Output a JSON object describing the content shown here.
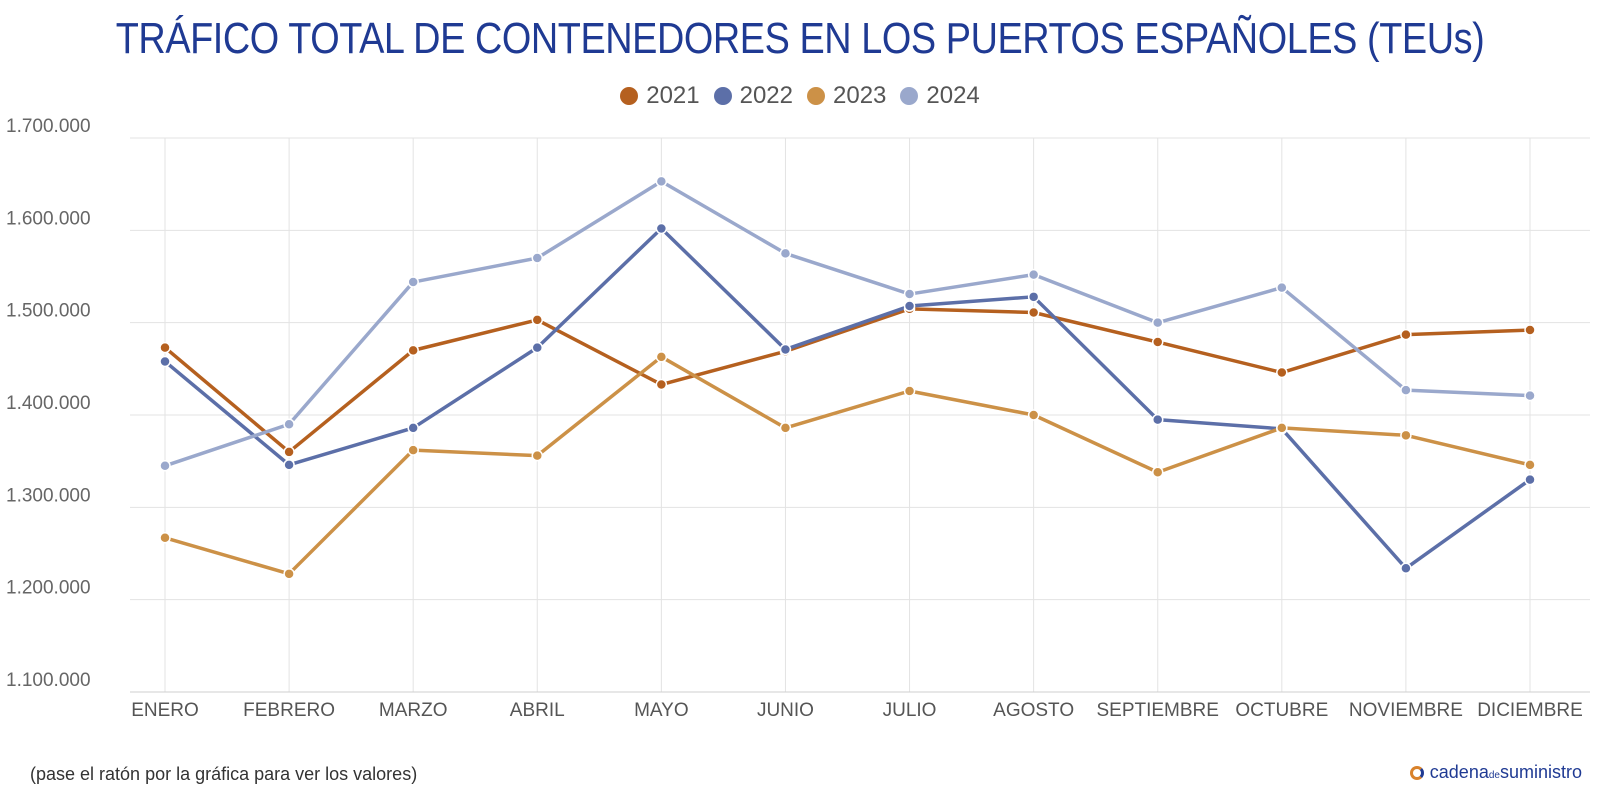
{
  "title": "TRÁFICO TOTAL DE CONTENEDORES EN LOS PUERTOS ESPAÑOLES (TEUs)",
  "footnote": "(pase el ratón por la gráfica para ver los valores)",
  "brand": {
    "part1": "cadena",
    "part2": "de",
    "part3": "suministro"
  },
  "chart_data": {
    "type": "line",
    "title": "TRÁFICO TOTAL DE CONTENEDORES EN LOS PUERTOS ESPAÑOLES (TEUs)",
    "categories": [
      "ENERO",
      "FEBRERO",
      "MARZO",
      "ABRIL",
      "MAYO",
      "JUNIO",
      "JULIO",
      "AGOSTO",
      "SEPTIEMBRE",
      "OCTUBRE",
      "NOVIEMBRE",
      "DICIEMBRE"
    ],
    "ylim": [
      1100000,
      1700000
    ],
    "yticks": [
      1100000,
      1200000,
      1300000,
      1400000,
      1500000,
      1600000,
      1700000
    ],
    "ytick_labels": [
      "1.100.000",
      "1.200.000",
      "1.300.000",
      "1.400.000",
      "1.500.000",
      "1.600.000",
      "1.700.000"
    ],
    "grid": true,
    "legend_position": "top-center",
    "series": [
      {
        "name": "2021",
        "color": "#b5601f",
        "values": [
          1473000,
          1360000,
          1470000,
          1503000,
          1433000,
          1469000,
          1515000,
          1511000,
          1479000,
          1446000,
          1487000,
          1492000
        ]
      },
      {
        "name": "2022",
        "color": "#5c6fa8",
        "values": [
          1458000,
          1346000,
          1386000,
          1473000,
          1602000,
          1471000,
          1518000,
          1528000,
          1395000,
          1385000,
          1234000,
          1330000
        ]
      },
      {
        "name": "2023",
        "color": "#cc9147",
        "values": [
          1267000,
          1228000,
          1362000,
          1356000,
          1463000,
          1386000,
          1426000,
          1400000,
          1338000,
          1386000,
          1378000,
          1346000
        ]
      },
      {
        "name": "2024",
        "color": "#9aa8cc",
        "values": [
          1345000,
          1390000,
          1544000,
          1570000,
          1653000,
          1575000,
          1531000,
          1552000,
          1500000,
          1538000,
          1427000,
          1421000
        ]
      }
    ]
  }
}
